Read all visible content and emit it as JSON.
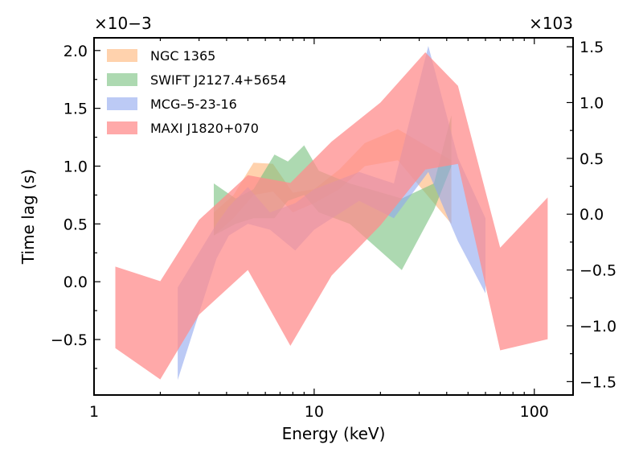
{
  "chart_data": {
    "type": "area",
    "xlabel": "Energy (keV)",
    "ylabel": "Time lag (s)",
    "xscale": "log",
    "xlim": [
      1,
      150
    ],
    "ylim_left": [
      -0.98,
      2.11
    ],
    "ylim_right": [
      -1.62,
      1.58
    ],
    "left_multiplier": "×10−3",
    "right_multiplier": "×103",
    "x_ticks": [
      {
        "value": 1,
        "label": "1"
      },
      {
        "value": 10,
        "label": "10"
      },
      {
        "value": 100,
        "label": "100"
      }
    ],
    "y_left_ticks": [
      {
        "value": -0.5,
        "label": "−0.5"
      },
      {
        "value": 0.0,
        "label": "0.0"
      },
      {
        "value": 0.5,
        "label": "0.5"
      },
      {
        "value": 1.0,
        "label": "1.0"
      },
      {
        "value": 1.5,
        "label": "1.5"
      },
      {
        "value": 2.0,
        "label": "2.0"
      }
    ],
    "y_right_ticks": [
      {
        "value": -1.5,
        "label": "−1.5"
      },
      {
        "value": -1.0,
        "label": "−1.0"
      },
      {
        "value": -0.5,
        "label": "−0.5"
      },
      {
        "value": 0.0,
        "label": "0.0"
      },
      {
        "value": 0.5,
        "label": "0.5"
      },
      {
        "value": 1.0,
        "label": "1.0"
      },
      {
        "value": 1.5,
        "label": "1.5"
      }
    ],
    "legend_position": "top-left",
    "grid": false,
    "series": [
      {
        "name": "NGC 1365",
        "color": "#ffb476",
        "opacity": 0.6,
        "axis": "left",
        "x": [
          3.5,
          4.3,
          5.3,
          6.5,
          8.0,
          10.0,
          13.0,
          17.0,
          24.0,
          42.0
        ],
        "lower": [
          0.4,
          0.55,
          0.75,
          0.78,
          0.6,
          0.68,
          0.8,
          1.0,
          1.05,
          0.5
        ],
        "upper": [
          0.6,
          0.75,
          1.03,
          1.02,
          0.77,
          0.8,
          0.97,
          1.2,
          1.32,
          1.05
        ]
      },
      {
        "name": "SWIFT J2127.4+5654",
        "color": "#77c07d",
        "opacity": 0.6,
        "axis": "left",
        "x": [
          3.5,
          4.4,
          5.3,
          6.6,
          7.6,
          9.0,
          10.5,
          14.5,
          25.0,
          35.0,
          42.0
        ],
        "lower": [
          0.4,
          0.5,
          0.55,
          0.55,
          0.7,
          0.75,
          0.6,
          0.5,
          0.1,
          0.62,
          1.0
        ],
        "upper": [
          0.85,
          0.72,
          0.8,
          1.1,
          1.04,
          1.18,
          0.96,
          0.85,
          0.72,
          0.85,
          1.44
        ]
      },
      {
        "name": "MCG–5-23-16",
        "color": "#8fa6ee",
        "opacity": 0.6,
        "axis": "left",
        "x": [
          2.4,
          3.6,
          4.1,
          5.0,
          6.3,
          8.2,
          10.0,
          16.0,
          23.0,
          33.0,
          45.0,
          60.0
        ],
        "lower": [
          -0.85,
          0.2,
          0.4,
          0.5,
          0.45,
          0.27,
          0.45,
          0.7,
          0.55,
          0.95,
          0.35,
          -0.1
        ],
        "upper": [
          -0.05,
          0.5,
          0.65,
          0.82,
          0.6,
          0.68,
          0.8,
          0.95,
          0.85,
          2.04,
          1.07,
          0.55
        ]
      },
      {
        "name": "MAXI J1820+070",
        "color": "#ff8c8c",
        "opacity": 0.75,
        "axis": "right",
        "x": [
          1.25,
          2.0,
          3.0,
          5.0,
          7.8,
          12.0,
          20.0,
          32.0,
          45.0,
          70.0,
          115.0
        ],
        "lower": [
          -1.2,
          -1.48,
          -0.9,
          -0.5,
          -1.18,
          -0.55,
          -0.1,
          0.4,
          0.45,
          -1.22,
          -1.12
        ],
        "upper": [
          -0.47,
          -0.6,
          -0.05,
          0.35,
          0.28,
          0.65,
          1.0,
          1.45,
          1.15,
          -0.3,
          0.15
        ]
      }
    ]
  }
}
